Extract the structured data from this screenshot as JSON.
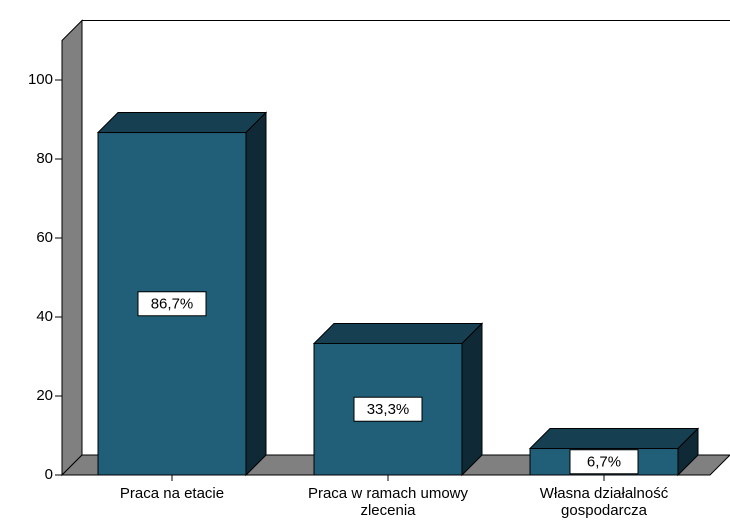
{
  "chart_data": {
    "type": "bar3d",
    "categories": [
      "Praca na etacie",
      "Praca w ramach umowy zlecenia",
      "Własna działalność gospodarcza"
    ],
    "values": [
      86.7,
      33.3,
      6.7
    ],
    "value_labels": [
      "86,7%",
      "33,3%",
      "6,7%"
    ],
    "color": "#215e78",
    "ylim": [
      0,
      110
    ],
    "yticks": [
      0,
      20,
      40,
      60,
      80,
      100
    ]
  }
}
